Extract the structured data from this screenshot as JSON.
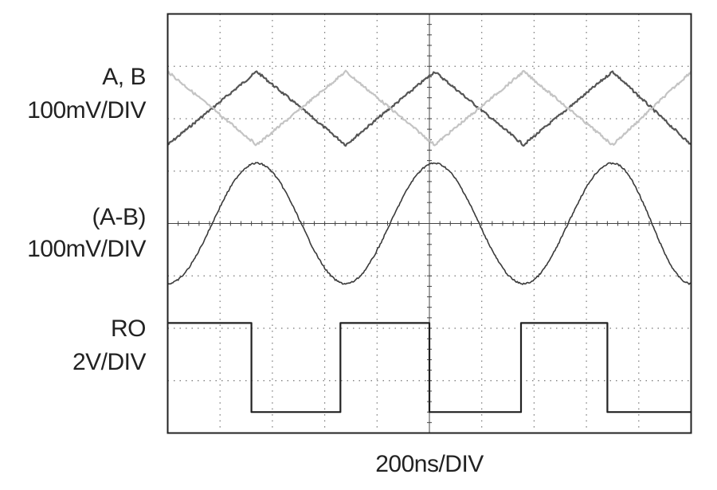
{
  "chart_data": {
    "type": "line",
    "title": "",
    "xlabel": "200ns/DIV",
    "time_per_div_ns": 200,
    "divisions": {
      "x": 10,
      "y": 8
    },
    "grid": "dotted",
    "x_div": [
      0,
      1.7,
      3.4,
      5.1,
      6.8,
      8.5,
      10
    ],
    "channels": [
      {
        "label_lines": [
          "A, B",
          "100mV/DIV"
        ],
        "series": [
          {
            "name": "A",
            "color": "#555555",
            "y_div": [
              -0.75,
              0.65,
              -0.75,
              0.65,
              -0.75,
              0.65,
              -0.75
            ]
          },
          {
            "name": "B",
            "color": "#c4c4c4",
            "y_div": [
              0.65,
              -0.75,
              0.65,
              -0.75,
              0.65,
              -0.75,
              0.65
            ]
          }
        ]
      },
      {
        "label_lines": [
          "(A-B)",
          "100mV/DIV"
        ],
        "series": [
          {
            "name": "A-B",
            "color": "#3a3a3a",
            "y_div": [
              -1.15,
              1.15,
              -1.15,
              1.15,
              -1.15,
              1.15,
              -1.15
            ]
          }
        ]
      },
      {
        "label_lines": [
          "RO",
          "2V/DIV"
        ],
        "series": [
          {
            "name": "RO",
            "color": "#222222",
            "shape": "square",
            "high_div": 0.35,
            "low_div": -1.35,
            "high_intervals": [
              [
                0,
                1.6
              ],
              [
                3.3,
                5.0
              ],
              [
                6.75,
                8.4
              ]
            ]
          }
        ]
      }
    ]
  }
}
